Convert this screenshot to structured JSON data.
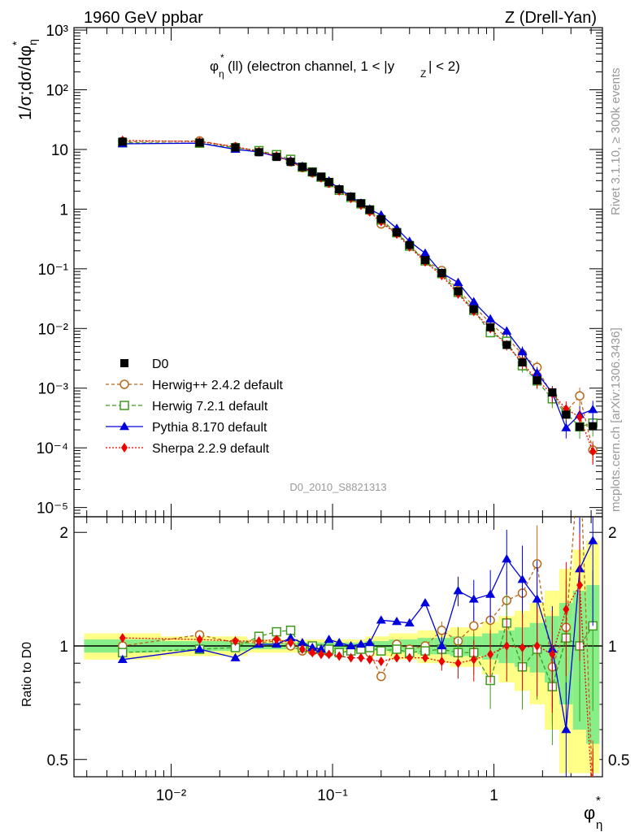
{
  "header": {
    "left": "1960 GeV ppbar",
    "right": "Z (Drell-Yan)"
  },
  "side": {
    "rivet": "Rivet 3.1.10, ≥ 300k events",
    "mcplots": "mcplots.cern.ch [arXiv:1306.3436]"
  },
  "chart_data": {
    "type": "line",
    "title": "φ*η(ll) (electron channel, 1 < |yZ| < 2)",
    "analysis": "D0_2010_S8821313",
    "xlabel": "φ*η",
    "ylabel": "1/σ;dσ/dφ*η",
    "ratio_ylabel": "Ratio to D0",
    "xscale": "log",
    "xlim": [
      0.0025,
      4.7
    ],
    "yscale": "log",
    "ylim": [
      7e-06,
      1100
    ],
    "ratio_ylim": [
      0.45,
      2.2
    ],
    "x_ticks": [
      "10⁻²",
      "10⁻¹",
      "1"
    ],
    "y_ticks": [
      "10⁻⁵",
      "10⁻⁴",
      "10⁻³",
      "10⁻²",
      "10⁻¹",
      "1",
      "10",
      "10²",
      "10³"
    ],
    "ratio_ticks": [
      "0.5",
      "1",
      "2"
    ],
    "legend_position": "bottom-left",
    "x": [
      0.005,
      0.015,
      0.025,
      0.035,
      0.045,
      0.055,
      0.065,
      0.075,
      0.085,
      0.095,
      0.11,
      0.13,
      0.15,
      0.17,
      0.2,
      0.25,
      0.3,
      0.375,
      0.475,
      0.6,
      0.75,
      0.95,
      1.2,
      1.5,
      1.85,
      2.3,
      2.8,
      3.4,
      4.1
    ],
    "data": {
      "name": "D0",
      "values": [
        13.5,
        13.0,
        10.8,
        9.0,
        7.5,
        6.2,
        5.1,
        4.2,
        3.5,
        2.85,
        2.15,
        1.62,
        1.25,
        0.98,
        0.68,
        0.41,
        0.25,
        0.14,
        0.085,
        0.042,
        0.021,
        0.0105,
        0.0053,
        0.0027,
        0.00135,
        0.00085,
        0.00036,
        0.000225,
        0.00023
      ],
      "ratio_band": [
        0.04,
        0.03,
        0.03,
        0.02,
        0.02,
        0.02,
        0.02,
        0.02,
        0.02,
        0.02,
        0.02,
        0.02,
        0.02,
        0.03,
        0.03,
        0.04,
        0.04,
        0.05,
        0.05,
        0.06,
        0.06,
        0.08,
        0.1,
        0.12,
        0.15,
        0.2,
        0.3,
        0.4,
        0.45
      ]
    },
    "series": [
      {
        "name": "Herwig++ 2.4.2 default",
        "color": "#b8681a",
        "dash": "4,3",
        "marker": "circle",
        "ratio": [
          1.0,
          1.07,
          1.02,
          1.02,
          1.03,
          1.0,
          0.97,
          0.97,
          0.98,
          0.96,
          0.96,
          0.97,
          0.98,
          0.96,
          0.83,
          1.01,
          0.98,
          1.0,
          1.1,
          1.03,
          1.13,
          1.17,
          1.32,
          1.38,
          1.65,
          0.88,
          1.12,
          3.3,
          0.4
        ]
      },
      {
        "name": "Herwig 7.2.1 default",
        "color": "#3f9a1f",
        "dash": "5,3",
        "marker": "square",
        "ratio": [
          0.96,
          0.98,
          0.99,
          1.06,
          1.09,
          1.1,
          0.99,
          1.0,
          0.98,
          0.98,
          0.96,
          0.97,
          0.98,
          0.99,
          0.97,
          0.98,
          0.96,
          0.97,
          0.98,
          0.96,
          0.96,
          0.81,
          1.15,
          0.88,
          0.98,
          0.78,
          1.05,
          1.0,
          1.13
        ]
      },
      {
        "name": "Pythia 8.170 default",
        "color": "#0000dd",
        "dash": "",
        "marker": "triangle",
        "ratio": [
          0.92,
          0.98,
          0.93,
          1.01,
          1.01,
          1.05,
          1.02,
          0.99,
          0.98,
          1.04,
          1.02,
          1.0,
          1.01,
          1.02,
          1.17,
          1.16,
          1.15,
          1.3,
          1.0,
          1.4,
          1.33,
          1.37,
          1.7,
          1.5,
          1.33,
          0.98,
          0.6,
          1.6,
          1.9
        ]
      },
      {
        "name": "Sherpa 2.2.9 default",
        "color": "#ee0000",
        "dash": "2,2",
        "marker": "diamond",
        "ratio": [
          1.05,
          1.04,
          1.03,
          1.03,
          1.04,
          1.02,
          0.98,
          0.96,
          0.95,
          0.95,
          0.94,
          0.93,
          0.93,
          0.92,
          0.91,
          0.93,
          0.93,
          0.93,
          0.91,
          0.9,
          0.92,
          0.95,
          1.0,
          0.99,
          1.0,
          0.95,
          1.25,
          1.45,
          0.38
        ]
      }
    ]
  }
}
